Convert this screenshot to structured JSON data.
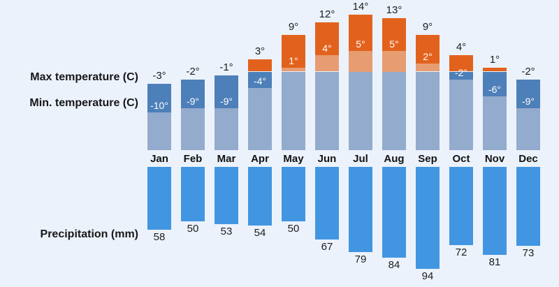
{
  "labels": {
    "max_temp": "Max temperature (C)",
    "min_temp": "Min. temperature (C)",
    "precipitation": "Precipitation (mm)"
  },
  "colors": {
    "background": "#ecf2fb",
    "warm_dark": "#e2621d",
    "warm_light": "#e79c72",
    "cold_dark": "#4d7fb9",
    "cold_light": "#93abcd",
    "precip_blue": "#4296e1",
    "text_dark": "#1d1d1f",
    "text_light": "#ffffff"
  },
  "months": [
    {
      "name": "Jan",
      "max": -3,
      "min": -10,
      "precip": 58,
      "max_label": "-3°",
      "min_label": "-10°",
      "precip_label": "58"
    },
    {
      "name": "Feb",
      "max": -2,
      "min": -9,
      "precip": 50,
      "max_label": "-2°",
      "min_label": "-9°",
      "precip_label": "50"
    },
    {
      "name": "Mar",
      "max": -1,
      "min": -9,
      "precip": 53,
      "max_label": "-1°",
      "min_label": "-9°",
      "precip_label": "53"
    },
    {
      "name": "Apr",
      "max": 3,
      "min": -4,
      "precip": 54,
      "max_label": "3°",
      "min_label": "-4°",
      "precip_label": "54"
    },
    {
      "name": "May",
      "max": 9,
      "min": 1,
      "precip": 50,
      "max_label": "9°",
      "min_label": "1°",
      "precip_label": "50"
    },
    {
      "name": "Jun",
      "max": 12,
      "min": 4,
      "precip": 67,
      "max_label": "12°",
      "min_label": "4°",
      "precip_label": "67"
    },
    {
      "name": "Jul",
      "max": 14,
      "min": 5,
      "precip": 79,
      "max_label": "14°",
      "min_label": "5°",
      "precip_label": "79"
    },
    {
      "name": "Aug",
      "max": 13,
      "min": 5,
      "precip": 84,
      "max_label": "13°",
      "min_label": "5°",
      "precip_label": "84"
    },
    {
      "name": "Sep",
      "max": 9,
      "min": 2,
      "precip": 94,
      "max_label": "9°",
      "min_label": "2°",
      "precip_label": "94"
    },
    {
      "name": "Oct",
      "max": 4,
      "min": -2,
      "precip": 72,
      "max_label": "4°",
      "min_label": "-2°",
      "precip_label": "72"
    },
    {
      "name": "Nov",
      "max": 1,
      "min": -6,
      "precip": 81,
      "max_label": "1°",
      "min_label": "-6°",
      "precip_label": "81"
    },
    {
      "name": "Dec",
      "max": -2,
      "min": -9,
      "precip": 73,
      "max_label": "-2°",
      "min_label": "-9°",
      "precip_label": "73"
    }
  ],
  "chart_data": {
    "type": "bar",
    "categories": [
      "Jan",
      "Feb",
      "Mar",
      "Apr",
      "May",
      "Jun",
      "Jul",
      "Aug",
      "Sep",
      "Oct",
      "Nov",
      "Dec"
    ],
    "series": [
      {
        "name": "Max temperature (C)",
        "values": [
          -3,
          -2,
          -1,
          3,
          9,
          12,
          14,
          13,
          9,
          4,
          1,
          -2
        ]
      },
      {
        "name": "Min. temperature (C)",
        "values": [
          -10,
          -9,
          -9,
          -4,
          1,
          4,
          5,
          5,
          2,
          -2,
          -6,
          -9
        ]
      },
      {
        "name": "Precipitation (mm)",
        "values": [
          58,
          50,
          53,
          54,
          50,
          67,
          79,
          84,
          94,
          72,
          81,
          73
        ]
      }
    ],
    "title": "",
    "xlabel": "",
    "ylabel": "",
    "legend_position": "left",
    "grid": false,
    "orientation": "vertical",
    "layout_notes": "Climate widget: stacked temperature bars above month labels (dark orange = max-to-min above 0, light orange = min-to-0, dark blue = negative max-to-min, light blue = filler to baseline); precipitation bars hang downward below month labels with values beneath each bar."
  }
}
